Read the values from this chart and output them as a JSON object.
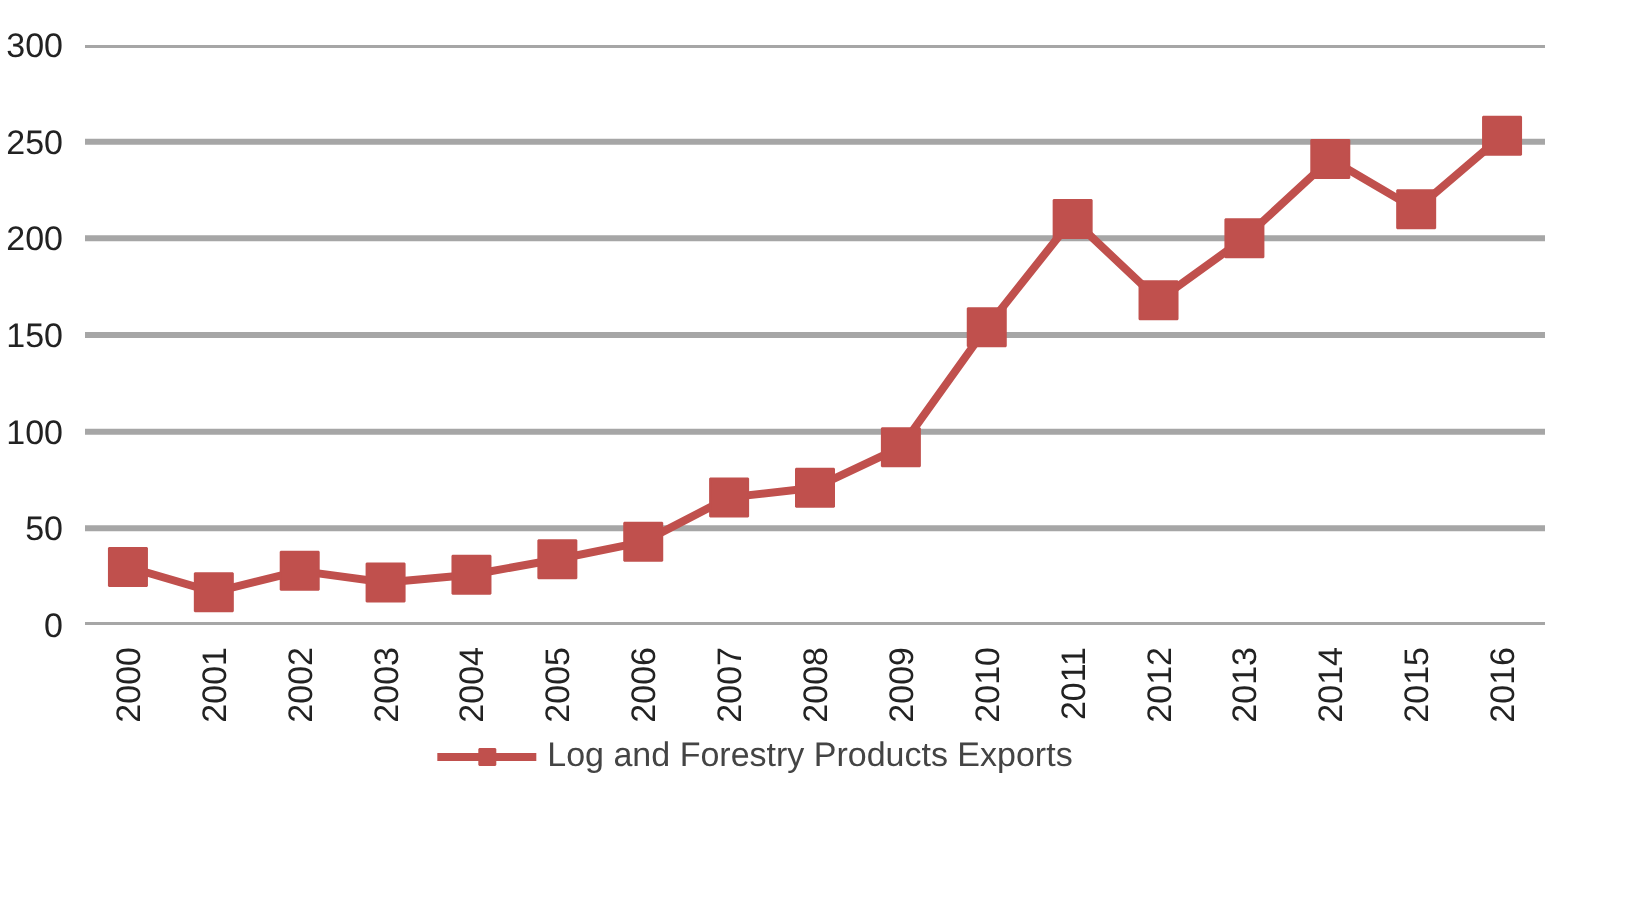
{
  "chart_data": {
    "type": "line",
    "categories": [
      "2000",
      "2001",
      "2002",
      "2003",
      "2004",
      "2005",
      "2006",
      "2007",
      "2008",
      "2009",
      "2010",
      "2011",
      "2012",
      "2013",
      "2014",
      "2015",
      "2016"
    ],
    "series": [
      {
        "name": "Log and Forestry Products Exports",
        "color": "#c0504d",
        "values": [
          30,
          17,
          28,
          22,
          26,
          34,
          43,
          66,
          71,
          92,
          154,
          210,
          168,
          200,
          241,
          215,
          253
        ]
      }
    ],
    "ylim": [
      0,
      300
    ],
    "yticks": [
      0,
      50,
      100,
      150,
      200,
      250,
      300
    ],
    "grid": "y",
    "legend": "bottom",
    "marker": "square",
    "line_style": "solid"
  }
}
